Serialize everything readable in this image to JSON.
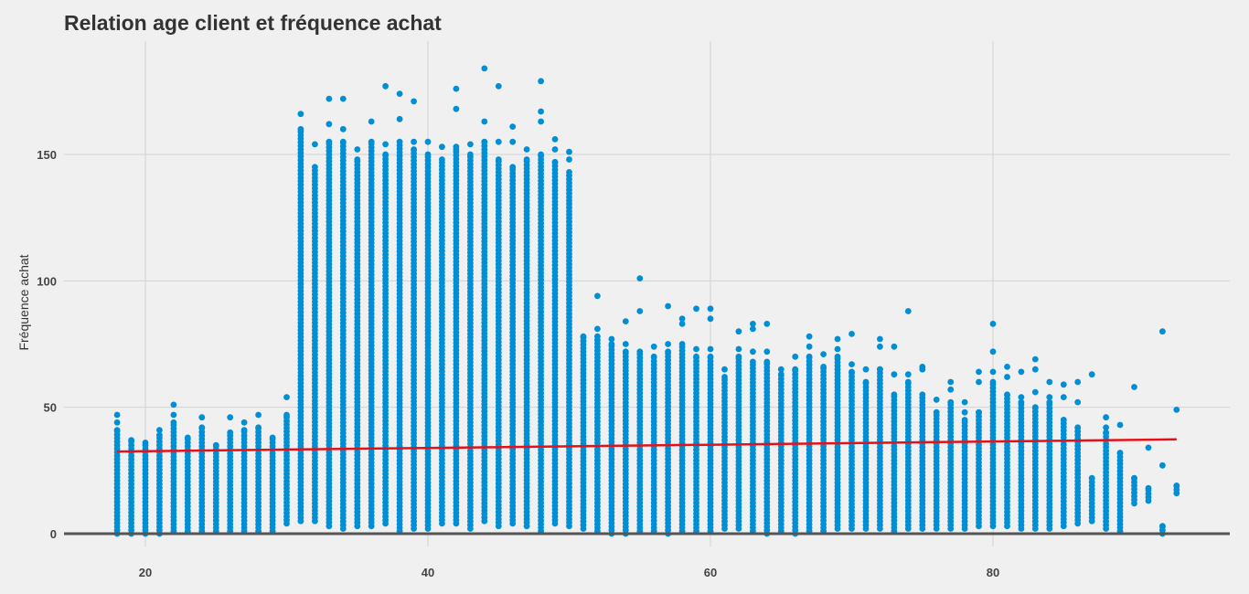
{
  "chart_data": {
    "type": "scatter",
    "title": "Relation age client et fréquence achat",
    "xlabel": "",
    "ylabel": "Fréquence achat",
    "xlim": [
      14,
      95
    ],
    "ylim": [
      -5,
      190
    ],
    "xticks": [
      20,
      40,
      60,
      80
    ],
    "yticks": [
      0,
      50,
      100,
      150
    ],
    "grid": true,
    "colors": {
      "points": "#008fd5",
      "regression": "#e5111a",
      "baseline": "#555555",
      "grid": "#d2d2d2",
      "background": "#f0f0f0"
    },
    "regression_line": {
      "x": [
        18,
        93
      ],
      "y": [
        32.5,
        37.3
      ]
    },
    "age_columns": [
      {
        "age": 18,
        "min": 0,
        "max": 41,
        "outliers": [
          44,
          47
        ]
      },
      {
        "age": 19,
        "min": 0,
        "max": 37,
        "outliers": []
      },
      {
        "age": 20,
        "min": 0,
        "max": 36,
        "outliers": []
      },
      {
        "age": 21,
        "min": 0,
        "max": 39,
        "outliers": [
          41
        ]
      },
      {
        "age": 22,
        "min": 1,
        "max": 44,
        "outliers": [
          47,
          51
        ]
      },
      {
        "age": 23,
        "min": 1,
        "max": 38,
        "outliers": []
      },
      {
        "age": 24,
        "min": 1,
        "max": 42,
        "outliers": [
          46
        ]
      },
      {
        "age": 25,
        "min": 1,
        "max": 35,
        "outliers": []
      },
      {
        "age": 26,
        "min": 1,
        "max": 40,
        "outliers": [
          46
        ]
      },
      {
        "age": 27,
        "min": 1,
        "max": 41,
        "outliers": [
          44
        ]
      },
      {
        "age": 28,
        "min": 1,
        "max": 42,
        "outliers": [
          47
        ]
      },
      {
        "age": 29,
        "min": 1,
        "max": 38,
        "outliers": []
      },
      {
        "age": 30,
        "min": 4,
        "max": 47,
        "outliers": [
          54
        ]
      },
      {
        "age": 31,
        "min": 5,
        "max": 160,
        "outliers": [
          166
        ]
      },
      {
        "age": 32,
        "min": 5,
        "max": 145,
        "outliers": [
          154
        ]
      },
      {
        "age": 33,
        "min": 3,
        "max": 155,
        "outliers": [
          162,
          172
        ]
      },
      {
        "age": 34,
        "min": 2,
        "max": 155,
        "outliers": [
          160,
          172
        ]
      },
      {
        "age": 35,
        "min": 3,
        "max": 148,
        "outliers": [
          152
        ]
      },
      {
        "age": 36,
        "min": 3,
        "max": 155,
        "outliers": [
          163
        ]
      },
      {
        "age": 37,
        "min": 4,
        "max": 150,
        "outliers": [
          154,
          177
        ]
      },
      {
        "age": 38,
        "min": 1,
        "max": 155,
        "outliers": [
          164,
          174
        ]
      },
      {
        "age": 39,
        "min": 2,
        "max": 152,
        "outliers": [
          155,
          171
        ]
      },
      {
        "age": 40,
        "min": 2,
        "max": 150,
        "outliers": [
          155
        ]
      },
      {
        "age": 41,
        "min": 4,
        "max": 148,
        "outliers": [
          153
        ]
      },
      {
        "age": 42,
        "min": 4,
        "max": 152,
        "outliers": [
          153,
          168,
          176
        ]
      },
      {
        "age": 43,
        "min": 2,
        "max": 150,
        "outliers": [
          154
        ]
      },
      {
        "age": 44,
        "min": 5,
        "max": 155,
        "outliers": [
          163,
          184
        ]
      },
      {
        "age": 45,
        "min": 3,
        "max": 148,
        "outliers": [
          155,
          177
        ]
      },
      {
        "age": 46,
        "min": 4,
        "max": 145,
        "outliers": [
          155,
          161
        ]
      },
      {
        "age": 47,
        "min": 3,
        "max": 148,
        "outliers": [
          152
        ]
      },
      {
        "age": 48,
        "min": 1,
        "max": 150,
        "outliers": [
          163,
          167,
          179
        ]
      },
      {
        "age": 49,
        "min": 4,
        "max": 147,
        "outliers": [
          152,
          156
        ]
      },
      {
        "age": 50,
        "min": 3,
        "max": 143,
        "outliers": [
          148,
          151
        ]
      },
      {
        "age": 51,
        "min": 2,
        "max": 78,
        "outliers": []
      },
      {
        "age": 52,
        "min": 1,
        "max": 78,
        "outliers": [
          81,
          94
        ]
      },
      {
        "age": 53,
        "min": 0,
        "max": 75,
        "outliers": [
          77
        ]
      },
      {
        "age": 54,
        "min": 0,
        "max": 72,
        "outliers": [
          75,
          84
        ]
      },
      {
        "age": 55,
        "min": 1,
        "max": 72,
        "outliers": [
          88,
          101
        ]
      },
      {
        "age": 56,
        "min": 1,
        "max": 70,
        "outliers": [
          74
        ]
      },
      {
        "age": 57,
        "min": 0,
        "max": 72,
        "outliers": [
          75,
          90
        ]
      },
      {
        "age": 58,
        "min": 1,
        "max": 75,
        "outliers": [
          83,
          85
        ]
      },
      {
        "age": 59,
        "min": 1,
        "max": 70,
        "outliers": [
          73,
          89
        ]
      },
      {
        "age": 60,
        "min": 1,
        "max": 70,
        "outliers": [
          73,
          85,
          89
        ]
      },
      {
        "age": 61,
        "min": 2,
        "max": 62,
        "outliers": [
          65
        ]
      },
      {
        "age": 62,
        "min": 2,
        "max": 70,
        "outliers": [
          73,
          80
        ]
      },
      {
        "age": 63,
        "min": 1,
        "max": 68,
        "outliers": [
          72,
          81,
          83
        ]
      },
      {
        "age": 64,
        "min": 0,
        "max": 68,
        "outliers": [
          72,
          83
        ]
      },
      {
        "age": 65,
        "min": 1,
        "max": 63,
        "outliers": [
          65
        ]
      },
      {
        "age": 66,
        "min": 0,
        "max": 65,
        "outliers": [
          70
        ]
      },
      {
        "age": 67,
        "min": 1,
        "max": 70,
        "outliers": [
          74,
          78
        ]
      },
      {
        "age": 68,
        "min": 1,
        "max": 66,
        "outliers": [
          71
        ]
      },
      {
        "age": 69,
        "min": 2,
        "max": 70,
        "outliers": [
          73,
          77
        ]
      },
      {
        "age": 70,
        "min": 2,
        "max": 64,
        "outliers": [
          67,
          79
        ]
      },
      {
        "age": 71,
        "min": 2,
        "max": 60,
        "outliers": [
          65
        ]
      },
      {
        "age": 72,
        "min": 2,
        "max": 65,
        "outliers": [
          74,
          77
        ]
      },
      {
        "age": 73,
        "min": 1,
        "max": 55,
        "outliers": [
          63,
          74
        ]
      },
      {
        "age": 74,
        "min": 2,
        "max": 60,
        "outliers": [
          63,
          88
        ]
      },
      {
        "age": 75,
        "min": 2,
        "max": 55,
        "outliers": [
          65,
          66
        ]
      },
      {
        "age": 76,
        "min": 2,
        "max": 48,
        "outliers": [
          53
        ]
      },
      {
        "age": 77,
        "min": 2,
        "max": 52,
        "outliers": [
          57,
          60
        ]
      },
      {
        "age": 78,
        "min": 2,
        "max": 45,
        "outliers": [
          48,
          52
        ]
      },
      {
        "age": 79,
        "min": 3,
        "max": 48,
        "outliers": [
          60,
          64
        ]
      },
      {
        "age": 80,
        "min": 3,
        "max": 60,
        "outliers": [
          64,
          72,
          83
        ]
      },
      {
        "age": 81,
        "min": 3,
        "max": 55,
        "outliers": [
          62,
          66
        ]
      },
      {
        "age": 82,
        "min": 2,
        "max": 52,
        "outliers": [
          54,
          64
        ]
      },
      {
        "age": 83,
        "min": 2,
        "max": 50,
        "outliers": [
          56,
          65,
          69
        ]
      },
      {
        "age": 84,
        "min": 2,
        "max": 52,
        "outliers": [
          54,
          60
        ]
      },
      {
        "age": 85,
        "min": 3,
        "max": 45,
        "outliers": [
          54,
          59
        ]
      },
      {
        "age": 86,
        "min": 4,
        "max": 42,
        "outliers": [
          52,
          60
        ]
      },
      {
        "age": 87,
        "min": 5,
        "max": 22,
        "outliers": [
          63
        ]
      },
      {
        "age": 88,
        "min": 2,
        "max": 40,
        "outliers": [
          42,
          46
        ]
      },
      {
        "age": 89,
        "min": 1,
        "max": 32,
        "outliers": [
          43
        ]
      },
      {
        "age": 90,
        "min": 12,
        "max": 22,
        "outliers": [
          58
        ]
      },
      {
        "age": 91,
        "min": 13,
        "max": 18,
        "outliers": [
          34
        ]
      },
      {
        "age": 92,
        "min": 0,
        "max": 3,
        "outliers": [
          27,
          80
        ]
      },
      {
        "age": 93,
        "min": 16,
        "max": 19,
        "outliers": [
          49
        ]
      }
    ]
  }
}
